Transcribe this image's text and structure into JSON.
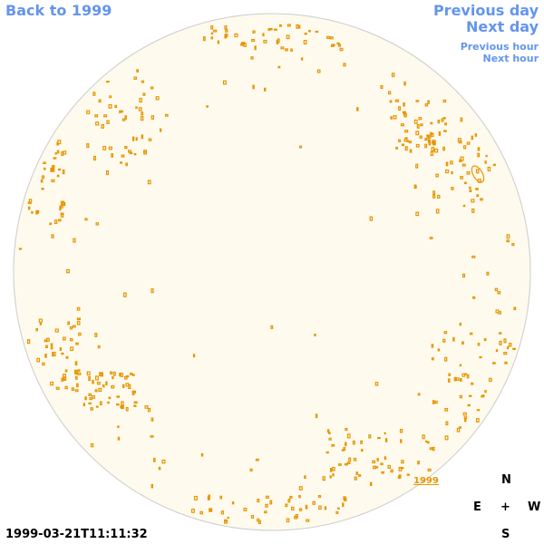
{
  "navigation": {
    "back": "Back to 1999",
    "previous_day": "Previous day",
    "next_day": "Next day",
    "previous_hour": "Previous hour",
    "next_hour": "Next hour"
  },
  "image": {
    "label": "1999"
  },
  "timestamp": "1999-03-21T11:11:32",
  "compass": {
    "north": "N",
    "east": "E",
    "center": "+",
    "west": "W",
    "south": "S"
  }
}
